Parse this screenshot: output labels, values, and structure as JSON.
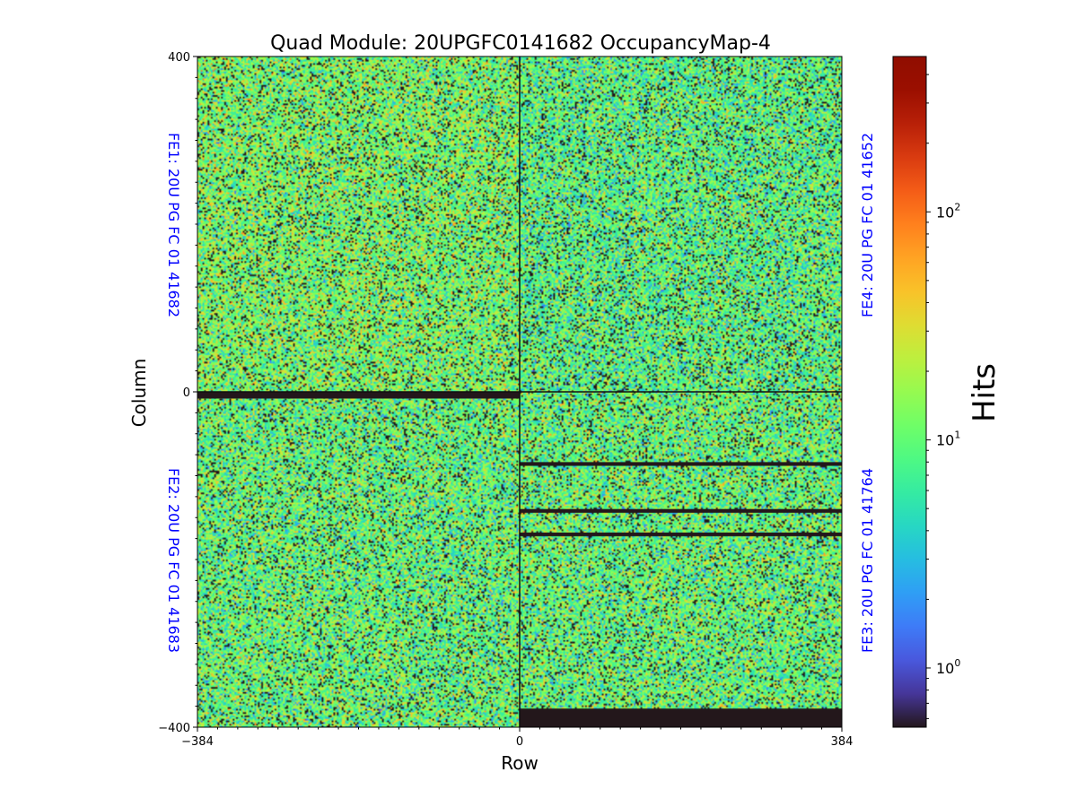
{
  "chart_data": {
    "type": "heatmap",
    "title": "Quad Module: 20UPGFC0141682 OccupancyMap-4",
    "xlabel": "Row",
    "ylabel": "Column",
    "xlim": [
      -384,
      384
    ],
    "ylim": [
      -400,
      400
    ],
    "x_ticks": [
      "−384",
      "0",
      "384"
    ],
    "y_ticks": [
      "400",
      "0",
      "−400"
    ],
    "colorbar": {
      "label": "Hits",
      "scale": "log",
      "colormap": "turbo",
      "range": [
        0.55,
        480
      ],
      "ticks": [
        {
          "base": "10",
          "exp": "0",
          "value": 1
        },
        {
          "base": "10",
          "exp": "1",
          "value": 10
        },
        {
          "base": "10",
          "exp": "2",
          "value": 100
        }
      ]
    },
    "chips": [
      {
        "name": "FE1: 20U PG FC 01 41682",
        "quadrant": "top-left",
        "x_range": [
          -384,
          0
        ],
        "y_range": [
          0,
          400
        ],
        "mean_hits": 12,
        "dead_rows": [
          [
            -8,
            0
          ]
        ]
      },
      {
        "name": "FE4: 20U PG FC 01 41652",
        "quadrant": "top-right",
        "x_range": [
          0,
          384
        ],
        "y_range": [
          0,
          400
        ],
        "mean_hits": 9,
        "dead_rows": []
      },
      {
        "name": "FE2: 20U PG FC 01 41683",
        "quadrant": "bottom-left",
        "x_range": [
          -384,
          0
        ],
        "y_range": [
          -400,
          0
        ],
        "mean_hits": 10,
        "dead_rows": []
      },
      {
        "name": "FE3: 20U PG FC 01 41764",
        "quadrant": "bottom-right",
        "x_range": [
          0,
          384
        ],
        "y_range": [
          -400,
          0
        ],
        "mean_hits": 10,
        "dead_rows": [
          [
            -88,
            -84
          ],
          [
            -144,
            -140
          ],
          [
            -172,
            -168
          ],
          [
            -400,
            -378
          ]
        ]
      }
    ],
    "grid": false
  }
}
